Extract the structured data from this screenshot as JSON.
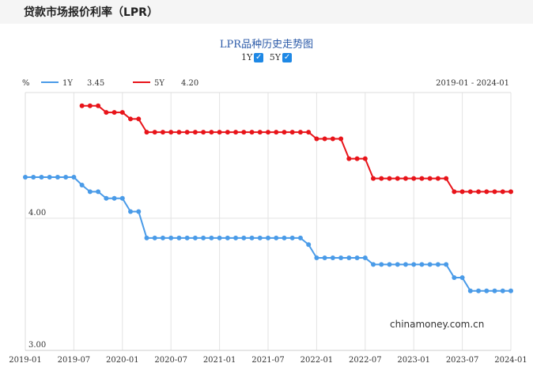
{
  "page": {
    "title": "贷款市场报价利率（LPR）"
  },
  "chart_header": {
    "title": "LPR品种历史走势图"
  },
  "toggles": [
    {
      "label": "1Y",
      "checked": true
    },
    {
      "label": "5Y",
      "checked": true
    }
  ],
  "legend": {
    "unit": "%",
    "items": [
      {
        "name": "1Y",
        "value": "3.45",
        "color": "#4a9be8"
      },
      {
        "name": "5Y",
        "value": "4.20",
        "color": "#e8141a"
      }
    ],
    "date_range": "2019-01 - 2024-01"
  },
  "watermark": "chinamoney.com.cn",
  "chart_data": {
    "type": "line",
    "x_tick_labels": [
      "2019-01",
      "2019-07",
      "2020-01",
      "2020-07",
      "2021-01",
      "2021-07",
      "2022-01",
      "2022-07",
      "2023-01",
      "2023-07",
      "2024-01"
    ],
    "y_tick_labels": [
      "3.00",
      "4.00"
    ],
    "ylim": [
      3.0,
      4.95
    ],
    "xlim": [
      "2019-01",
      "2024-01"
    ],
    "grid": true,
    "series": [
      {
        "name": "1Y",
        "color": "#4a9be8",
        "x": [
          "2019-01",
          "2019-02",
          "2019-03",
          "2019-04",
          "2019-05",
          "2019-06",
          "2019-07",
          "2019-08",
          "2019-09",
          "2019-10",
          "2019-11",
          "2019-12",
          "2020-01",
          "2020-02",
          "2020-03",
          "2020-04",
          "2020-05",
          "2020-06",
          "2020-07",
          "2020-08",
          "2020-09",
          "2020-10",
          "2020-11",
          "2020-12",
          "2021-01",
          "2021-02",
          "2021-03",
          "2021-04",
          "2021-05",
          "2021-06",
          "2021-07",
          "2021-08",
          "2021-09",
          "2021-10",
          "2021-11",
          "2021-12",
          "2022-01",
          "2022-02",
          "2022-03",
          "2022-04",
          "2022-05",
          "2022-06",
          "2022-07",
          "2022-08",
          "2022-09",
          "2022-10",
          "2022-11",
          "2022-12",
          "2023-01",
          "2023-02",
          "2023-03",
          "2023-04",
          "2023-05",
          "2023-06",
          "2023-07",
          "2023-08",
          "2023-09",
          "2023-10",
          "2023-11",
          "2023-12",
          "2024-01"
        ],
        "values": [
          4.31,
          4.31,
          4.31,
          4.31,
          4.31,
          4.31,
          4.31,
          4.25,
          4.2,
          4.2,
          4.15,
          4.15,
          4.15,
          4.05,
          4.05,
          3.85,
          3.85,
          3.85,
          3.85,
          3.85,
          3.85,
          3.85,
          3.85,
          3.85,
          3.85,
          3.85,
          3.85,
          3.85,
          3.85,
          3.85,
          3.85,
          3.85,
          3.85,
          3.85,
          3.85,
          3.8,
          3.7,
          3.7,
          3.7,
          3.7,
          3.7,
          3.7,
          3.7,
          3.65,
          3.65,
          3.65,
          3.65,
          3.65,
          3.65,
          3.65,
          3.65,
          3.65,
          3.65,
          3.55,
          3.55,
          3.45,
          3.45,
          3.45,
          3.45,
          3.45,
          3.45
        ]
      },
      {
        "name": "5Y",
        "color": "#e8141a",
        "x": [
          "2019-08",
          "2019-09",
          "2019-10",
          "2019-11",
          "2019-12",
          "2020-01",
          "2020-02",
          "2020-03",
          "2020-04",
          "2020-05",
          "2020-06",
          "2020-07",
          "2020-08",
          "2020-09",
          "2020-10",
          "2020-11",
          "2020-12",
          "2021-01",
          "2021-02",
          "2021-03",
          "2021-04",
          "2021-05",
          "2021-06",
          "2021-07",
          "2021-08",
          "2021-09",
          "2021-10",
          "2021-11",
          "2021-12",
          "2022-01",
          "2022-02",
          "2022-03",
          "2022-04",
          "2022-05",
          "2022-06",
          "2022-07",
          "2022-08",
          "2022-09",
          "2022-10",
          "2022-11",
          "2022-12",
          "2023-01",
          "2023-02",
          "2023-03",
          "2023-04",
          "2023-05",
          "2023-06",
          "2023-07",
          "2023-08",
          "2023-09",
          "2023-10",
          "2023-11",
          "2023-12",
          "2024-01"
        ],
        "values": [
          4.85,
          4.85,
          4.85,
          4.8,
          4.8,
          4.8,
          4.75,
          4.75,
          4.65,
          4.65,
          4.65,
          4.65,
          4.65,
          4.65,
          4.65,
          4.65,
          4.65,
          4.65,
          4.65,
          4.65,
          4.65,
          4.65,
          4.65,
          4.65,
          4.65,
          4.65,
          4.65,
          4.65,
          4.65,
          4.6,
          4.6,
          4.6,
          4.6,
          4.45,
          4.45,
          4.45,
          4.3,
          4.3,
          4.3,
          4.3,
          4.3,
          4.3,
          4.3,
          4.3,
          4.3,
          4.3,
          4.2,
          4.2,
          4.2,
          4.2,
          4.2,
          4.2,
          4.2,
          4.2
        ]
      }
    ]
  }
}
